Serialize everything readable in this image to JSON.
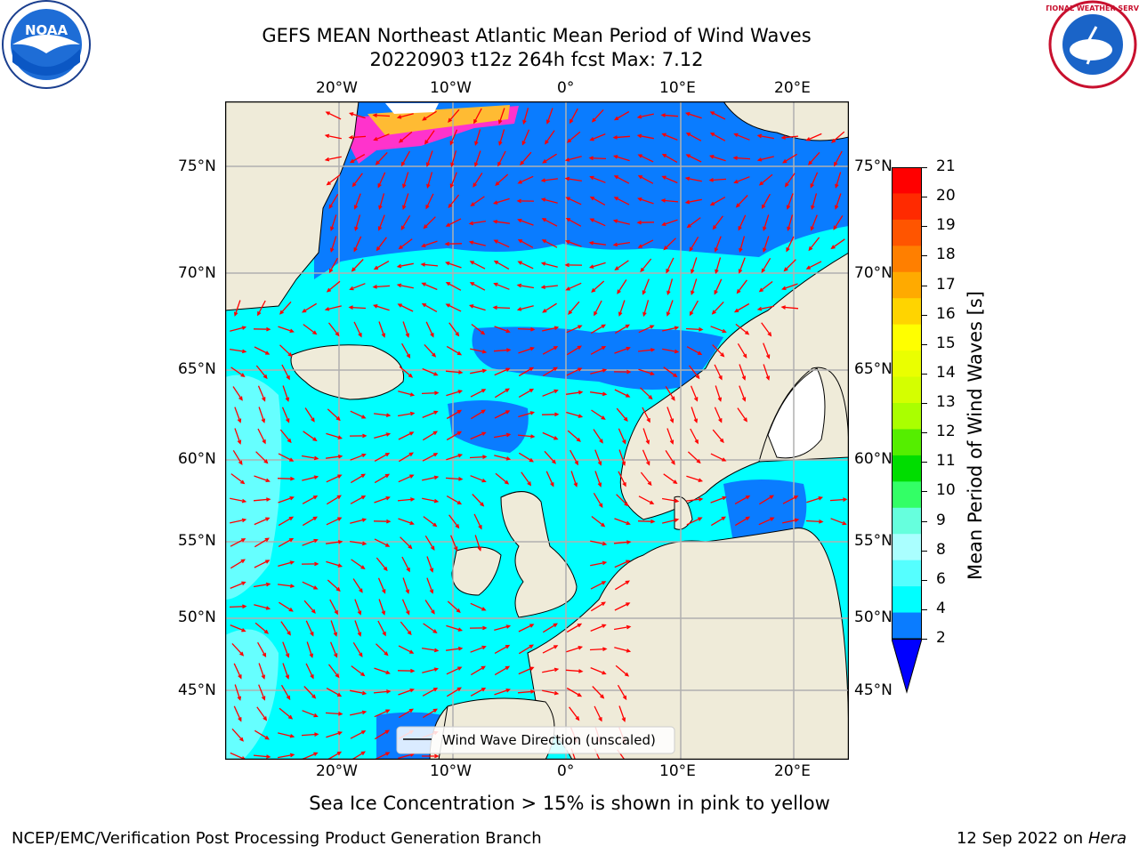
{
  "header": {
    "title_line1": "GEFS MEAN Northeast Atlantic Mean Period of Wind Waves",
    "title_line2": "20220903 t12z 264h fcst   Max: 7.12",
    "left_logo_text": "NOAA",
    "right_logo_text": "NATIONAL WEATHER SERVICE"
  },
  "map": {
    "lon_ticks": [
      "20°W",
      "10°W",
      "0°",
      "10°E",
      "20°E"
    ],
    "lat_ticks": [
      "75°N",
      "70°N",
      "65°N",
      "60°N",
      "55°N",
      "50°N",
      "45°N"
    ],
    "legend_label": "Wind Wave Direction (unscaled)",
    "arrow_color": "#ff0000",
    "land_color": "#efebd9",
    "coast_color": "#000000",
    "grid_color": "#b0b0b0"
  },
  "colorbar": {
    "label": "Mean Period of Wind Waves [s]",
    "ticks": [
      "21",
      "20",
      "19",
      "18",
      "17",
      "16",
      "15",
      "14",
      "13",
      "12",
      "11",
      "10",
      "9",
      "8",
      "6",
      "4",
      "2"
    ],
    "colors": [
      "#ff0000",
      "#ff2a00",
      "#ff5500",
      "#ff7f00",
      "#ffaa00",
      "#ffd400",
      "#ffff00",
      "#eaff00",
      "#d4ff00",
      "#aaff00",
      "#55ee00",
      "#00dd00",
      "#33ff66",
      "#66ffdd",
      "#aaffff",
      "#55ffff",
      "#00ffff",
      "#0a7cff"
    ],
    "under_color": "#0000ff"
  },
  "footer": {
    "caption": "Sea Ice Concentration > 15% is shown in pink to yellow",
    "left": "NCEP/EMC/Verification Post Processing Product Generation Branch",
    "right_date": "12 Sep 2022 on",
    "right_host": "Hera"
  }
}
